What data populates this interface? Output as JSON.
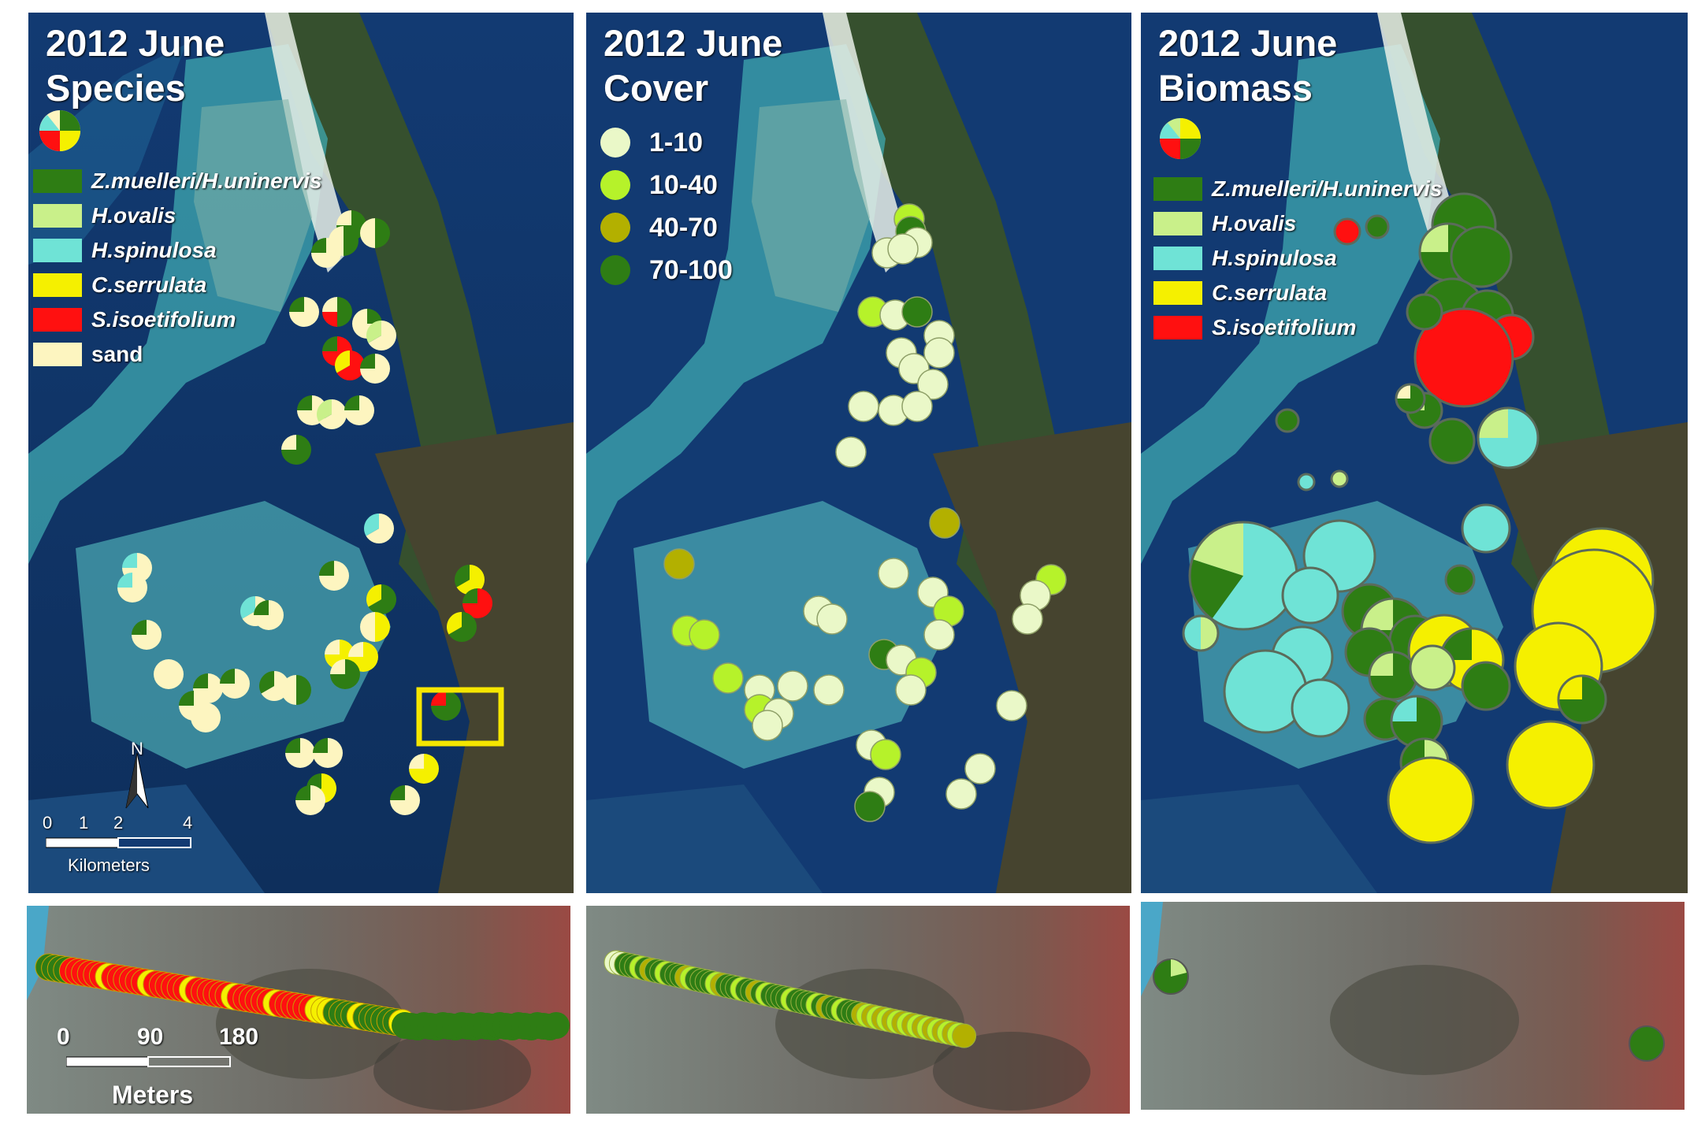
{
  "colors": {
    "z_muelleri": "#2e7d14",
    "h_ovalis": "#c9f08a",
    "h_spinulosa": "#6fe3d6",
    "c_serrulata": "#f5f000",
    "s_isoetifolium": "#ff1010",
    "sand": "#fdf5c0",
    "cover_1_10": "#eaf8c8",
    "cover_10_40": "#b6f22a",
    "cover_40_70": "#b3b000",
    "cover_70_100": "#2e7d14",
    "highlight_box": "#f5e600"
  },
  "species_panel": {
    "title_line1": "2012 June",
    "title_line2": "Species",
    "legend": [
      {
        "label": "Z.muelleri/H.uninervis",
        "color_key": "z_muelleri",
        "italic": true
      },
      {
        "label": "H.ovalis",
        "color_key": "h_ovalis",
        "italic": true
      },
      {
        "label": "H.spinulosa",
        "color_key": "h_spinulosa",
        "italic": true
      },
      {
        "label": "C.serrulata",
        "color_key": "c_serrulata",
        "italic": true
      },
      {
        "label": "S.isoetifolium",
        "color_key": "s_isoetifolium",
        "italic": true
      },
      {
        "label": "sand",
        "color_key": "sand",
        "italic": false
      }
    ],
    "north_label": "N",
    "scale_ticks": [
      "0",
      "1",
      "2",
      "4"
    ],
    "scale_unit": "Kilometers"
  },
  "cover_panel": {
    "title_line1": "2012 June",
    "title_line2": "Cover",
    "legend": [
      {
        "label": "1-10",
        "color_key": "cover_1_10"
      },
      {
        "label": "10-40",
        "color_key": "cover_10_40"
      },
      {
        "label": "40-70",
        "color_key": "cover_40_70"
      },
      {
        "label": "70-100",
        "color_key": "cover_70_100"
      }
    ]
  },
  "biomass_panel": {
    "title_line1": "2012 June",
    "title_line2": "Biomass",
    "legend": [
      {
        "label": "Z.muelleri/H.uninervis",
        "color_key": "z_muelleri"
      },
      {
        "label": "H.ovalis",
        "color_key": "h_ovalis"
      },
      {
        "label": "H.spinulosa",
        "color_key": "h_spinulosa"
      },
      {
        "label": "C.serrulata",
        "color_key": "c_serrulata"
      },
      {
        "label": "S.isoetifolium",
        "color_key": "s_isoetifolium"
      }
    ]
  },
  "inset_species": {
    "scale_ticks": [
      "0",
      "90",
      "180"
    ],
    "scale_unit": "Meters"
  }
}
